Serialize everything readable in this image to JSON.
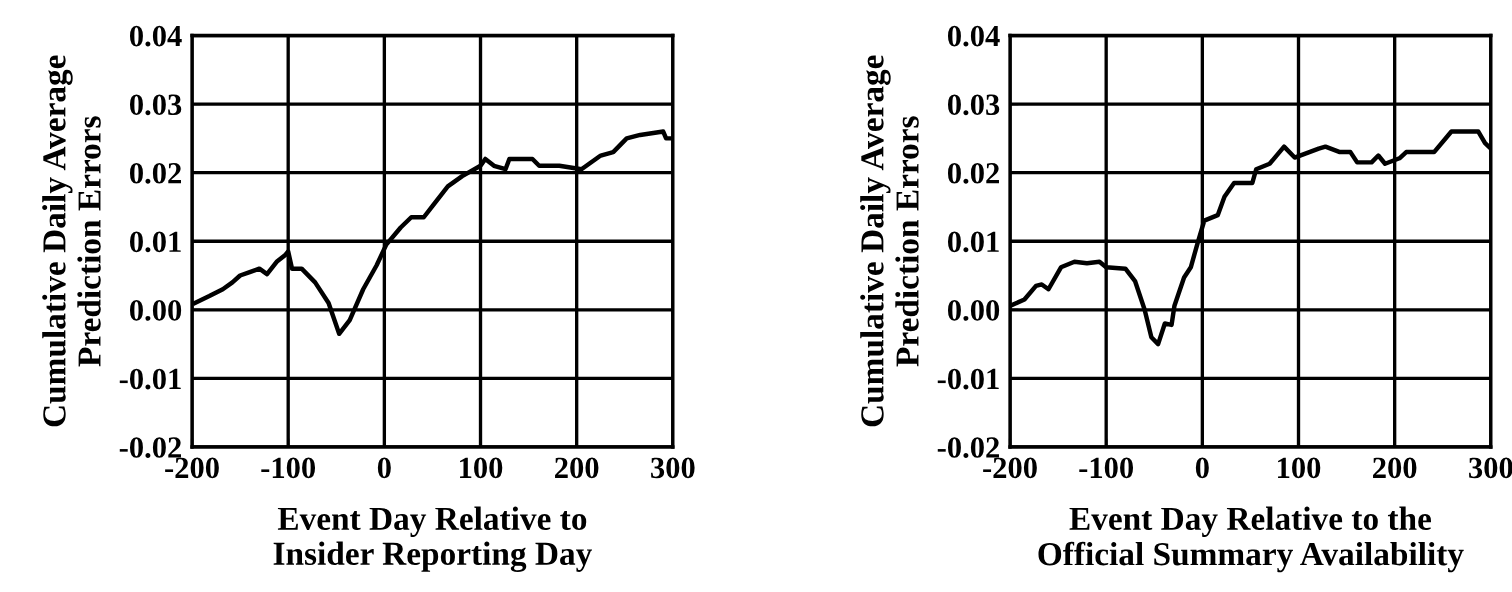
{
  "chart_data": [
    {
      "type": "line",
      "xlabel": "Event Day Relative to\nInsider Reporting Day",
      "ylabel": "Cumulative Daily Average\nPrediction Errors",
      "xlim": [
        -200,
        300
      ],
      "ylim": [
        -0.02,
        0.04
      ],
      "xticks": [
        -200,
        -100,
        0,
        100,
        200,
        300
      ],
      "yticks": [
        {
          "value": -0.02,
          "label": "-0.02"
        },
        {
          "value": -0.01,
          "label": "-0.01"
        },
        {
          "value": 0,
          "label": "0.00"
        },
        {
          "value": 0.01,
          "label": "0.01"
        },
        {
          "value": 0.02,
          "label": "0.02"
        },
        {
          "value": 0.03,
          "label": "0.03"
        },
        {
          "value": 0.04,
          "label": "0.04"
        }
      ],
      "grid": true,
      "marker": "none",
      "line_style": "solid",
      "series": [
        {
          "color": "#000000",
          "x": [
            -197,
            -182,
            -168,
            -158,
            -150,
            -140,
            -130,
            -122,
            -112,
            -103,
            -100,
            -96,
            -86,
            -72,
            -58,
            -47,
            -36,
            -22,
            -8,
            2,
            17,
            28,
            41,
            52,
            66,
            81,
            100,
            105,
            114,
            126,
            130,
            154,
            161,
            182,
            205,
            225,
            238,
            252,
            266,
            290,
            293,
            300
          ],
          "values": [
            0.001,
            0.002,
            0.003,
            0.004,
            0.005,
            0.0055,
            0.006,
            0.0052,
            0.007,
            0.008,
            0.0085,
            0.006,
            0.006,
            0.004,
            0.001,
            -0.0035,
            -0.0015,
            0.003,
            0.0065,
            0.0095,
            0.012,
            0.0135,
            0.0135,
            0.0155,
            0.018,
            0.0195,
            0.021,
            0.022,
            0.021,
            0.0205,
            0.022,
            0.022,
            0.021,
            0.021,
            0.0205,
            0.0225,
            0.023,
            0.025,
            0.0255,
            0.026,
            0.025,
            0.025
          ]
        }
      ]
    },
    {
      "type": "line",
      "xlabel": "Event Day Relative to the\nOfficial Summary Availability",
      "ylabel": "Cumulative Daily Average\nPrediction Errors",
      "xlim": [
        -200,
        300
      ],
      "ylim": [
        -0.02,
        0.04
      ],
      "xticks": [
        -200,
        -100,
        0,
        100,
        200,
        300
      ],
      "yticks": [
        {
          "value": -0.02,
          "label": "-0.02"
        },
        {
          "value": -0.01,
          "label": "-0.01"
        },
        {
          "value": 0,
          "label": "0.00"
        },
        {
          "value": 0.01,
          "label": "0.01"
        },
        {
          "value": 0.02,
          "label": "0.02"
        },
        {
          "value": 0.03,
          "label": "0.03"
        },
        {
          "value": 0.04,
          "label": "0.04"
        }
      ],
      "grid": true,
      "marker": "none",
      "line_style": "solid",
      "series": [
        {
          "color": "#000000",
          "x": [
            -198,
            -185,
            -173,
            -167,
            -160,
            -147,
            -133,
            -120,
            -107,
            -100,
            -80,
            -70,
            -60,
            -53,
            -46,
            -39,
            -32,
            -29,
            -19,
            -12,
            -5,
            2,
            16,
            23,
            33,
            52,
            56,
            70,
            85,
            96,
            121,
            128,
            143,
            154,
            161,
            176,
            183,
            190,
            205,
            212,
            241,
            259,
            287,
            294,
            300
          ],
          "values": [
            0.0007,
            0.0015,
            0.0035,
            0.0037,
            0.003,
            0.0062,
            0.007,
            0.0068,
            0.007,
            0.0062,
            0.006,
            0.0042,
            0.0,
            -0.004,
            -0.005,
            -0.002,
            -0.0022,
            0.0006,
            0.0047,
            0.0062,
            0.0097,
            0.013,
            0.0138,
            0.0165,
            0.0185,
            0.0185,
            0.0205,
            0.0213,
            0.0238,
            0.0222,
            0.0235,
            0.0238,
            0.023,
            0.023,
            0.0215,
            0.0215,
            0.0225,
            0.0213,
            0.0221,
            0.023,
            0.023,
            0.026,
            0.026,
            0.0243,
            0.0235
          ]
        }
      ]
    }
  ]
}
